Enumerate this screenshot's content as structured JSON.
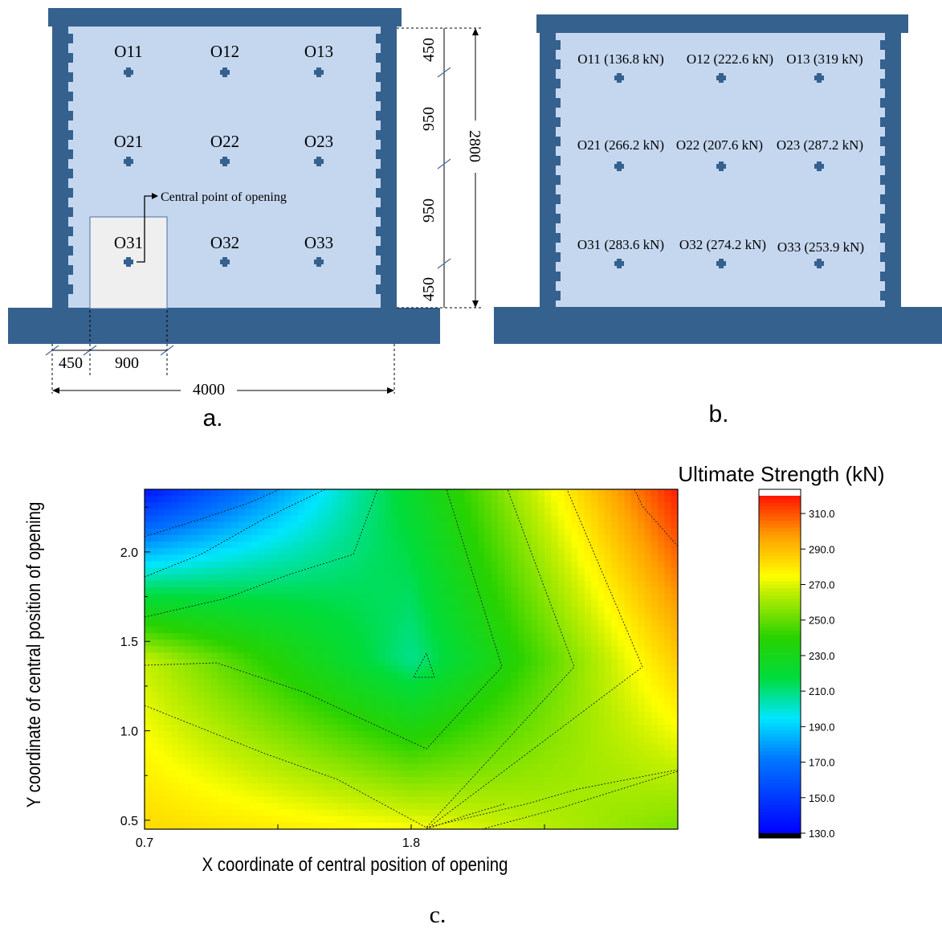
{
  "panel_a": {
    "caption": "a.",
    "openings": [
      {
        "id": "O11"
      },
      {
        "id": "O12"
      },
      {
        "id": "O13"
      },
      {
        "id": "O21"
      },
      {
        "id": "O22"
      },
      {
        "id": "O23"
      },
      {
        "id": "O31"
      },
      {
        "id": "O32"
      },
      {
        "id": "O33"
      }
    ],
    "annotation": "Central point of opening",
    "dims_vertical": [
      "450",
      "950",
      "950",
      "450"
    ],
    "dim_total_height": "2800",
    "dim_left_offset": "450",
    "dim_opening_width": "900",
    "dim_total_width": "4000"
  },
  "panel_b": {
    "caption": "b.",
    "openings": [
      {
        "label": "O11 (136.8 kN)"
      },
      {
        "label": "O12 (222.6 kN)"
      },
      {
        "label": "O13 (319 kN)"
      },
      {
        "label": "O21 (266.2 kN)"
      },
      {
        "label": "O22 (207.6 kN)"
      },
      {
        "label": "O23 (287.2 kN)"
      },
      {
        "label": "O31 (283.6 kN)"
      },
      {
        "label": "O32 (274.2 kN)"
      },
      {
        "label": "O33 (253.9 kN)"
      }
    ]
  },
  "panel_c": {
    "caption": "c.",
    "colorbar_title": "Ultimate Strength (kN)"
  },
  "colors": {
    "frame": "#35618f",
    "wall": "#c5d7ef",
    "opening": "#efefef",
    "dim_line": "#4a6fa5"
  },
  "chart_data": {
    "type": "heatmap",
    "xlabel": "X coordinate of central position of opening",
    "ylabel": "Y coordinate of central position of opening",
    "xlim": [
      0.7,
      2.9
    ],
    "ylim": [
      0.45,
      2.35
    ],
    "x_ticks": [
      "0.7",
      "1.8"
    ],
    "y_ticks": [
      "0.5",
      "1.0",
      "1.5",
      "2.0"
    ],
    "x": [
      0.7,
      1.8,
      2.9
    ],
    "y": [
      0.45,
      1.4,
      2.35
    ],
    "z": [
      [
        283.6,
        274.2,
        253.9
      ],
      [
        266.2,
        207.6,
        287.2
      ],
      [
        136.8,
        222.6,
        319
      ]
    ],
    "colorbar_ticks": [
      "130.0",
      "150.0",
      "170.0",
      "190.0",
      "210.0",
      "230.0",
      "250.0",
      "270.0",
      "290.0",
      "310.0"
    ],
    "colorbar_range": [
      130,
      320
    ]
  }
}
